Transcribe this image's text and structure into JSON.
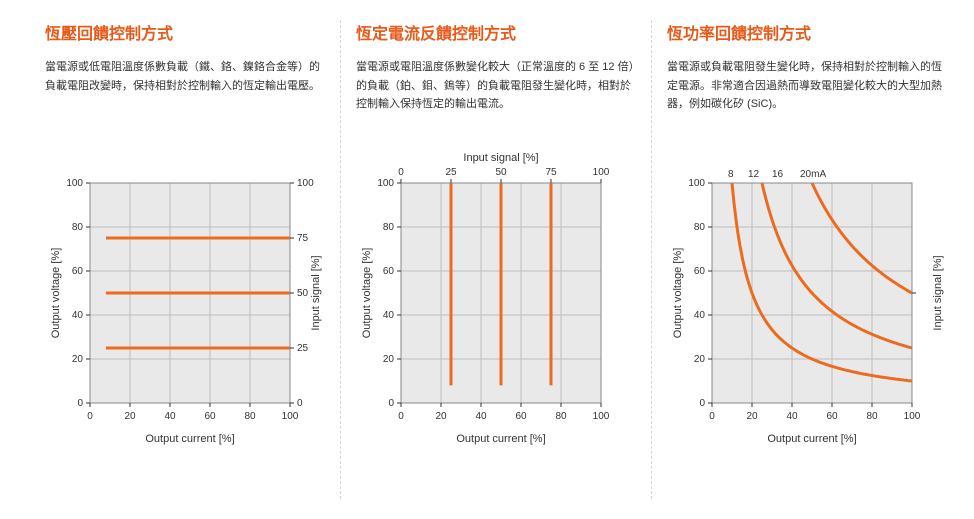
{
  "columns": [
    {
      "title": "恆壓回饋控制方式",
      "desc": "當電源或低電阻溫度係數負載（鐵、鉻、鎳鉻合金等）的負載電阻改變時，保持相對於控制輸入的恆定輸出電壓。",
      "chart": {
        "type": "line",
        "plot_bg": "#e9e9e9",
        "grid_color": "#bdbdbd",
        "series_color": "#ed6b1f",
        "series_width": 3,
        "x_axis": {
          "label": "Output current [%]",
          "min": 0,
          "max": 100,
          "ticks": [
            0,
            20,
            40,
            60,
            80,
            100
          ]
        },
        "y_left": {
          "label": "Output voltage [%]",
          "min": 0,
          "max": 100,
          "ticks": [
            0,
            20,
            40,
            60,
            80,
            100
          ]
        },
        "y_right": {
          "label": "Input signal [%]",
          "ticks": [
            0,
            25,
            50,
            75,
            100
          ]
        },
        "series": [
          {
            "points": [
              [
                8,
                25
              ],
              [
                100,
                25
              ]
            ]
          },
          {
            "points": [
              [
                8,
                50
              ],
              [
                100,
                50
              ]
            ]
          },
          {
            "points": [
              [
                8,
                75
              ],
              [
                100,
                75
              ]
            ]
          }
        ]
      }
    },
    {
      "title": "恆定電流反饋控制方式",
      "desc": "當電源或電阻溫度係數變化較大（正常溫度的 6 至 12 倍）的負載（鉑、鉬、鎢等）的負載電阻發生變化時，相對於控制輸入保持恆定的輸出電流。",
      "chart": {
        "type": "line",
        "plot_bg": "#e9e9e9",
        "grid_color": "#bdbdbd",
        "series_color": "#ed6b1f",
        "series_width": 3,
        "x_axis": {
          "label": "Output current [%]",
          "min": 0,
          "max": 100,
          "ticks": [
            0,
            20,
            40,
            60,
            80,
            100
          ]
        },
        "y_left": {
          "label": "Output voltage [%]",
          "min": 0,
          "max": 100,
          "ticks": [
            0,
            20,
            40,
            60,
            80,
            100
          ]
        },
        "x_top": {
          "label": "Input signal [%]",
          "ticks": [
            0,
            25,
            50,
            75,
            100
          ]
        },
        "series": [
          {
            "points": [
              [
                25,
                8
              ],
              [
                25,
                100
              ]
            ]
          },
          {
            "points": [
              [
                50,
                8
              ],
              [
                50,
                100
              ]
            ]
          },
          {
            "points": [
              [
                75,
                8
              ],
              [
                75,
                100
              ]
            ]
          }
        ]
      }
    },
    {
      "title": "恆功率回饋控制方式",
      "desc": "當電源或負載電阻發生變化時，保持相對於控制輸入的恆定電源。非常適合因過熱而導致電阻變化較大的大型加熱器，例如碳化矽 (SiC)。",
      "chart": {
        "type": "curve",
        "plot_bg": "#e9e9e9",
        "grid_color": "#bdbdbd",
        "series_color": "#ed6b1f",
        "series_width": 3,
        "x_axis": {
          "label": "Output current [%]",
          "min": 0,
          "max": 100,
          "ticks": [
            0,
            20,
            40,
            60,
            80,
            100
          ]
        },
        "y_left": {
          "label": "Output voltage [%]",
          "min": 0,
          "max": 100,
          "ticks": [
            0,
            20,
            40,
            60,
            80,
            100
          ]
        },
        "y_right": {
          "label": "Input signal [%]"
        },
        "top_annotations": [
          {
            "x": 8,
            "text": "8"
          },
          {
            "x": 18,
            "text": "12"
          },
          {
            "x": 30,
            "text": "16"
          },
          {
            "x": 44,
            "text": "20mA"
          }
        ],
        "right_tick": 50,
        "curves_k": [
          1000,
          2500,
          5000,
          10000
        ]
      }
    }
  ]
}
